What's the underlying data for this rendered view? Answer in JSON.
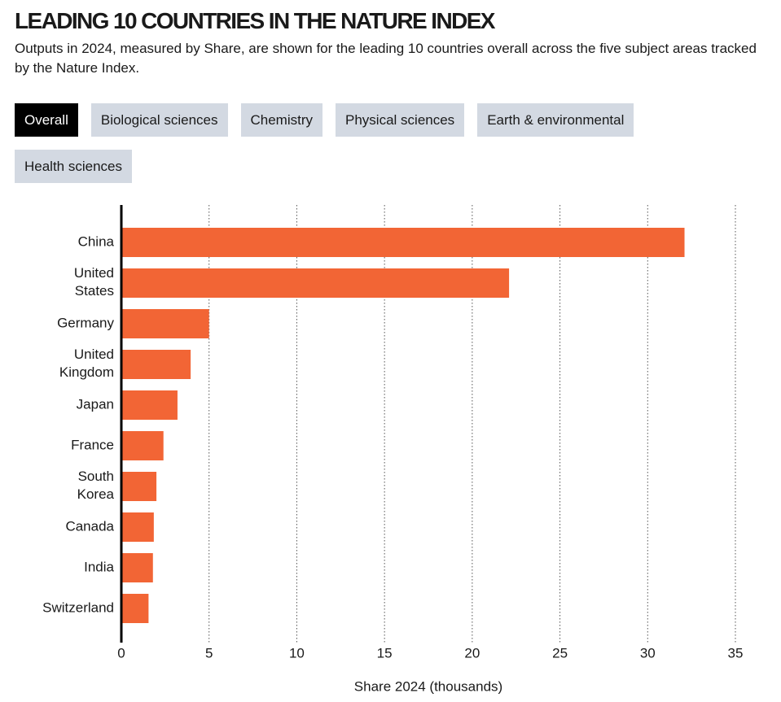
{
  "title": "LEADING 10 COUNTRIES IN THE NATURE INDEX",
  "subtitle": "Outputs in 2024, measured by Share, are shown for the leading 10 countries overall across the five subject areas tracked by the Nature Index.",
  "tabs": [
    "Overall",
    "Biological sciences",
    "Chemistry",
    "Physical sciences",
    "Earth & environmental",
    "Health sciences"
  ],
  "chart_data": {
    "type": "bar",
    "orientation": "horizontal",
    "categories": [
      "China",
      "United States",
      "Germany",
      "United Kingdom",
      "Japan",
      "France",
      "South Korea",
      "Canada",
      "India",
      "Switzerland"
    ],
    "values": [
      32.1,
      22.1,
      5.0,
      3.95,
      3.2,
      2.4,
      2.0,
      1.85,
      1.8,
      1.55
    ],
    "color": "#f26535",
    "xlabel": "Share 2024 (thousands)",
    "xlim": [
      0,
      35
    ],
    "xticks": [
      0,
      5,
      10,
      15,
      20,
      25,
      30,
      35
    ],
    "grid": true
  }
}
